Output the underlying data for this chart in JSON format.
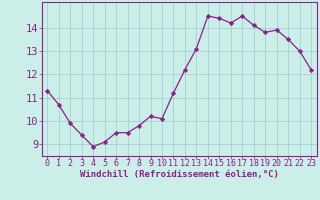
{
  "x": [
    0,
    1,
    2,
    3,
    4,
    5,
    6,
    7,
    8,
    9,
    10,
    11,
    12,
    13,
    14,
    15,
    16,
    17,
    18,
    19,
    20,
    21,
    22,
    23
  ],
  "y": [
    11.3,
    10.7,
    9.9,
    9.4,
    8.9,
    9.1,
    9.5,
    9.5,
    9.8,
    10.2,
    10.1,
    11.2,
    12.2,
    13.1,
    14.5,
    14.4,
    14.2,
    14.5,
    14.1,
    13.8,
    13.9,
    13.5,
    13.0,
    12.2
  ],
  "line_color": "#882288",
  "marker": "D",
  "marker_size": 2.2,
  "bg_color": "#cceee8",
  "grid_color": "#99cccc",
  "xlabel": "Windchill (Refroidissement éolien,°C)",
  "xlabel_color": "#882288",
  "tick_color": "#882288",
  "ylim": [
    8.5,
    15.1
  ],
  "yticks": [
    9,
    10,
    11,
    12,
    13,
    14
  ],
  "xlim": [
    -0.5,
    23.5
  ],
  "xticks": [
    0,
    1,
    2,
    3,
    4,
    5,
    6,
    7,
    8,
    9,
    10,
    11,
    12,
    13,
    14,
    15,
    16,
    17,
    18,
    19,
    20,
    21,
    22,
    23
  ],
  "tick_fontsize": 6.0,
  "ylabel_fontsize": 7.5,
  "xlabel_fontsize": 6.5
}
